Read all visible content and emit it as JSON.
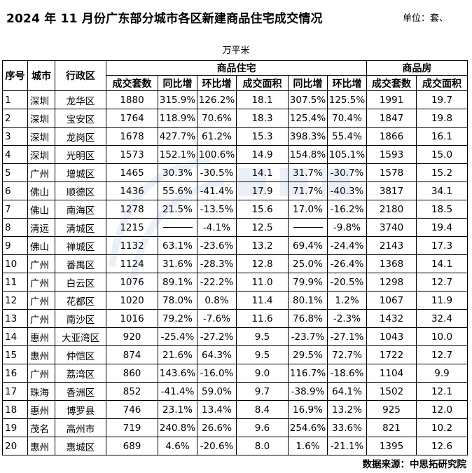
{
  "title": "2024 年 11 月份广东部分城市各区新建商品住宅成交情况",
  "unit_part1": "单位：套、",
  "unit_part2": "万平米",
  "source": "数据来源：中思拓研究院",
  "colors": {
    "border": "#000000",
    "watermark": "#5b86c7"
  },
  "chart_data": {
    "type": "table",
    "header_groups": {
      "seq": "序号",
      "city": "城市",
      "district": "行政区",
      "residential": "商品住宅",
      "commercial": "商品房"
    },
    "columns": [
      "成交套数",
      "同比增",
      "环比增",
      "成交面积",
      "同比增",
      "环比增",
      "成交套数",
      "成交面积"
    ],
    "rows": [
      [
        "1",
        "深圳",
        "龙华区",
        "1880",
        "315.9%",
        "126.2%",
        "18.1",
        "307.5%",
        "125.5%",
        "1991",
        "19.7"
      ],
      [
        "2",
        "深圳",
        "宝安区",
        "1764",
        "118.9%",
        "70.6%",
        "18.3",
        "125.4%",
        "70.4%",
        "1847",
        "19.8"
      ],
      [
        "3",
        "深圳",
        "龙岗区",
        "1678",
        "427.7%",
        "61.2%",
        "15.3",
        "398.3%",
        "55.4%",
        "1866",
        "16.1"
      ],
      [
        "4",
        "深圳",
        "光明区",
        "1573",
        "152.1%",
        "100.6%",
        "14.9",
        "154.8%",
        "105.1%",
        "1593",
        "15.0"
      ],
      [
        "5",
        "广州",
        "增城区",
        "1465",
        "30.3%",
        "-30.5%",
        "14.1",
        "31.7%",
        "-30.7%",
        "1578",
        "15.2"
      ],
      [
        "6",
        "佛山",
        "顺德区",
        "1436",
        "55.6%",
        "-41.4%",
        "17.9",
        "71.7%",
        "-40.3%",
        "3817",
        "34.1"
      ],
      [
        "7",
        "佛山",
        "南海区",
        "1278",
        "21.5%",
        "-13.5%",
        "15.6",
        "17.0%",
        "-16.2%",
        "2180",
        "18.5"
      ],
      [
        "8",
        "清远",
        "清城区",
        "1215",
        "",
        "-4.1%",
        "12.5",
        "",
        "-9.8%",
        "3740",
        "19.4"
      ],
      [
        "9",
        "佛山",
        "禅城区",
        "1132",
        "63.1%",
        "-23.6%",
        "13.2",
        "69.4%",
        "-24.4%",
        "2143",
        "17.3"
      ],
      [
        "10",
        "广州",
        "番禺区",
        "1124",
        "31.6%",
        "-28.3%",
        "12.8",
        "25.0%",
        "-26.4%",
        "1368",
        "14.1"
      ],
      [
        "11",
        "广州",
        "白云区",
        "1076",
        "89.1%",
        "-22.2%",
        "11.0",
        "79.9%",
        "-20.5%",
        "1298",
        "12.7"
      ],
      [
        "12",
        "广州",
        "花都区",
        "1020",
        "78.0%",
        "0.8%",
        "11.4",
        "80.1%",
        "1.2%",
        "1067",
        "11.9"
      ],
      [
        "13",
        "广州",
        "南沙区",
        "1016",
        "79.2%",
        "-7.6%",
        "11.6",
        "76.8%",
        "-2.3%",
        "1432",
        "32.4"
      ],
      [
        "14",
        "惠州",
        "大亚湾区",
        "920",
        "-25.4%",
        "-27.2%",
        "9.5",
        "-23.7%",
        "-27.1%",
        "1043",
        "10.0"
      ],
      [
        "15",
        "惠州",
        "仲恺区",
        "874",
        "21.6%",
        "64.3%",
        "9.5",
        "29.5%",
        "72.7%",
        "1722",
        "12.7"
      ],
      [
        "16",
        "广州",
        "荔湾区",
        "860",
        "143.6%",
        "-16.0%",
        "9.0",
        "116.7%",
        "-18.6%",
        "1104",
        "9.9"
      ],
      [
        "17",
        "珠海",
        "香洲区",
        "852",
        "-41.4%",
        "59.0%",
        "9.7",
        "-38.9%",
        "64.1%",
        "1502",
        "12.1"
      ],
      [
        "18",
        "惠州",
        "博罗县",
        "746",
        "23.1%",
        "13.4%",
        "8.4",
        "16.9%",
        "13.2%",
        "925",
        "12.0"
      ],
      [
        "19",
        "茂名",
        "高州市",
        "719",
        "240.8%",
        "26.6%",
        "9.6",
        "254.6%",
        "33.6%",
        "821",
        "10.2"
      ],
      [
        "20",
        "惠州",
        "惠城区",
        "689",
        "4.6%",
        "-20.6%",
        "8.0",
        "1.6%",
        "-21.1%",
        "1395",
        "12.6"
      ]
    ]
  }
}
